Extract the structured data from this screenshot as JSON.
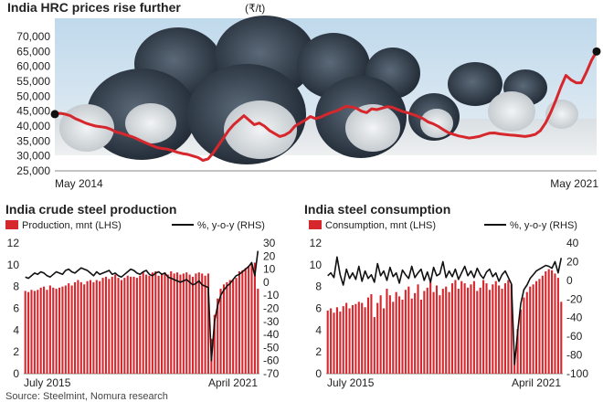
{
  "source": "Source: Steelmint, Nomura research",
  "colors": {
    "red": "#d6272d",
    "black": "#111111",
    "text": "#222222",
    "grid": "#cccccc"
  },
  "chart_data": [
    {
      "type": "line",
      "id": "hrc",
      "title": "India HRC prices rise further",
      "unit_label": "(₹/t)",
      "x_start_label": "May 2014",
      "x_end_label": "May 2021",
      "ylim": [
        25000,
        70000
      ],
      "yticks": [
        25000,
        30000,
        35000,
        40000,
        45000,
        50000,
        55000,
        60000,
        65000,
        70000
      ],
      "ytick_labels": [
        "25,000",
        "30,000",
        "35,000",
        "40,000",
        "45,000",
        "50,000",
        "55,000",
        "60,000",
        "65,000",
        "70,000"
      ],
      "series": [
        {
          "name": "HRC price",
          "values": [
            44000,
            44300,
            44000,
            43500,
            42500,
            41800,
            41000,
            40500,
            40000,
            39800,
            39500,
            38900,
            38000,
            37600,
            37000,
            36500,
            35800,
            35000,
            34200,
            33500,
            32800,
            32500,
            32300,
            31800,
            31200,
            30800,
            30500,
            30000,
            29500,
            28500,
            29000,
            31000,
            33500,
            36000,
            38500,
            40500,
            42000,
            43500,
            42000,
            40500,
            41000,
            40000,
            38500,
            37500,
            36500,
            37000,
            38000,
            40000,
            41000,
            42000,
            43200,
            42500,
            43000,
            43800,
            44500,
            45000,
            45800,
            46600,
            46400,
            46000,
            45000,
            44500,
            45800,
            45500,
            46000,
            46500,
            46300,
            45600,
            44900,
            44500,
            43900,
            43300,
            42500,
            41400,
            40800,
            39900,
            38800,
            37800,
            37200,
            36700,
            36400,
            36000,
            36200,
            36500,
            37100,
            37600,
            37700,
            37400,
            37200,
            37000,
            36900,
            36700,
            36500,
            36800,
            37200,
            38500,
            41000,
            44500,
            48500,
            53000,
            57000,
            55500,
            54500,
            54500,
            58000,
            62000,
            65000
          ]
        }
      ]
    },
    {
      "type": "bar+line",
      "id": "production",
      "title": "India crude steel production",
      "legend_bar": "Production, mnt (LHS)",
      "legend_line": "%, y-o-y (RHS)",
      "x_start_label": "July 2015",
      "x_end_label": "April 2021",
      "left_ylim": [
        0,
        12
      ],
      "left_yticks": [
        0,
        2,
        4,
        6,
        8,
        10,
        12
      ],
      "right_ylim": [
        -70,
        30
      ],
      "right_yticks": [
        -70,
        -60,
        -50,
        -40,
        -30,
        -20,
        -10,
        0,
        10,
        20,
        30
      ],
      "bars": [
        7.6,
        7.5,
        7.7,
        7.6,
        7.7,
        7.9,
        8.0,
        7.7,
        8.1,
        7.9,
        7.8,
        7.9,
        8.0,
        8.1,
        8.3,
        8.1,
        8.4,
        8.6,
        8.4,
        8.2,
        8.5,
        8.6,
        8.4,
        8.6,
        8.5,
        8.8,
        8.9,
        8.7,
        8.9,
        9.1,
        8.8,
        8.6,
        8.8,
        9.0,
        8.9,
        8.9,
        8.8,
        9.0,
        9.3,
        9.1,
        9.0,
        9.3,
        9.4,
        9.0,
        9.2,
        9.3,
        9.1,
        9.4,
        9.2,
        9.3,
        9.1,
        9.2,
        9.3,
        9.1,
        8.9,
        9.2,
        9.3,
        9.2,
        9.0,
        9.2,
        3.2,
        5.4,
        6.9,
        7.8,
        8.2,
        8.4,
        8.6,
        8.6,
        8.8,
        9.4,
        9.5,
        9.7,
        9.9,
        10.1,
        10.2,
        7.8
      ],
      "line": [
        4,
        3,
        5,
        7,
        6,
        8,
        7,
        5,
        4,
        6,
        8,
        7,
        6,
        9,
        10,
        8,
        7,
        9,
        11,
        10,
        9,
        7,
        5,
        8,
        6,
        7,
        8,
        9,
        6,
        7,
        5,
        4,
        6,
        8,
        10,
        9,
        7,
        6,
        8,
        9,
        6,
        5,
        7,
        8,
        6,
        7,
        4,
        3,
        2,
        1,
        0,
        1,
        2,
        0,
        -2,
        -1,
        1,
        -2,
        -3,
        -4,
        -60,
        -30,
        -18,
        -10,
        -6,
        -3,
        -1,
        2,
        5,
        6,
        8,
        10,
        12,
        15,
        5,
        24
      ]
    },
    {
      "type": "bar+line",
      "id": "consumption",
      "title": "India steel consumption",
      "legend_bar": "Consumption, mnt (LHS)",
      "legend_line": "%, y-o-y (RHS)",
      "x_start_label": "July 2015",
      "x_end_label": "April 2021",
      "left_ylim": [
        0,
        12
      ],
      "left_yticks": [
        0,
        2,
        4,
        6,
        8,
        10,
        12
      ],
      "right_ylim": [
        -100,
        40
      ],
      "right_yticks": [
        -100,
        -80,
        -60,
        -40,
        -20,
        0,
        20,
        40
      ],
      "bars": [
        5.8,
        6.0,
        5.6,
        6.1,
        5.7,
        6.2,
        6.5,
        6.0,
        6.3,
        6.4,
        6.6,
        6.5,
        6.1,
        7.0,
        7.3,
        5.2,
        6.5,
        7.2,
        6.0,
        7.8,
        7.2,
        6.6,
        7.5,
        7.1,
        6.8,
        7.7,
        8.0,
        6.9,
        7.4,
        8.2,
        6.8,
        7.6,
        7.9,
        8.4,
        7.5,
        8.1,
        7.2,
        7.8,
        8.0,
        7.5,
        8.3,
        8.6,
        7.8,
        8.5,
        8.3,
        7.9,
        8.2,
        8.5,
        7.6,
        7.9,
        8.6,
        8.3,
        7.7,
        8.2,
        8.5,
        8.1,
        7.8,
        8.3,
        8.6,
        8.2,
        1.5,
        4.1,
        5.9,
        7.0,
        7.5,
        8.0,
        8.2,
        8.5,
        8.7,
        9.0,
        9.4,
        9.6,
        9.5,
        9.2,
        8.8,
        6.6
      ],
      "line": [
        5,
        8,
        3,
        25,
        6,
        -5,
        12,
        2,
        8,
        1,
        15,
        -1,
        10,
        2,
        6,
        -2,
        18,
        5,
        10,
        0,
        14,
        4,
        8,
        -3,
        11,
        6,
        2,
        15,
        3,
        8,
        12,
        0,
        9,
        -2,
        14,
        5,
        7,
        20,
        3,
        10,
        4,
        12,
        1,
        8,
        15,
        5,
        10,
        3,
        13,
        6,
        2,
        9,
        12,
        4,
        8,
        -1,
        6,
        10,
        3,
        -4,
        -90,
        -55,
        -25,
        -10,
        -5,
        2,
        6,
        10,
        12,
        14,
        16,
        15,
        13,
        20,
        8,
        24
      ]
    }
  ]
}
